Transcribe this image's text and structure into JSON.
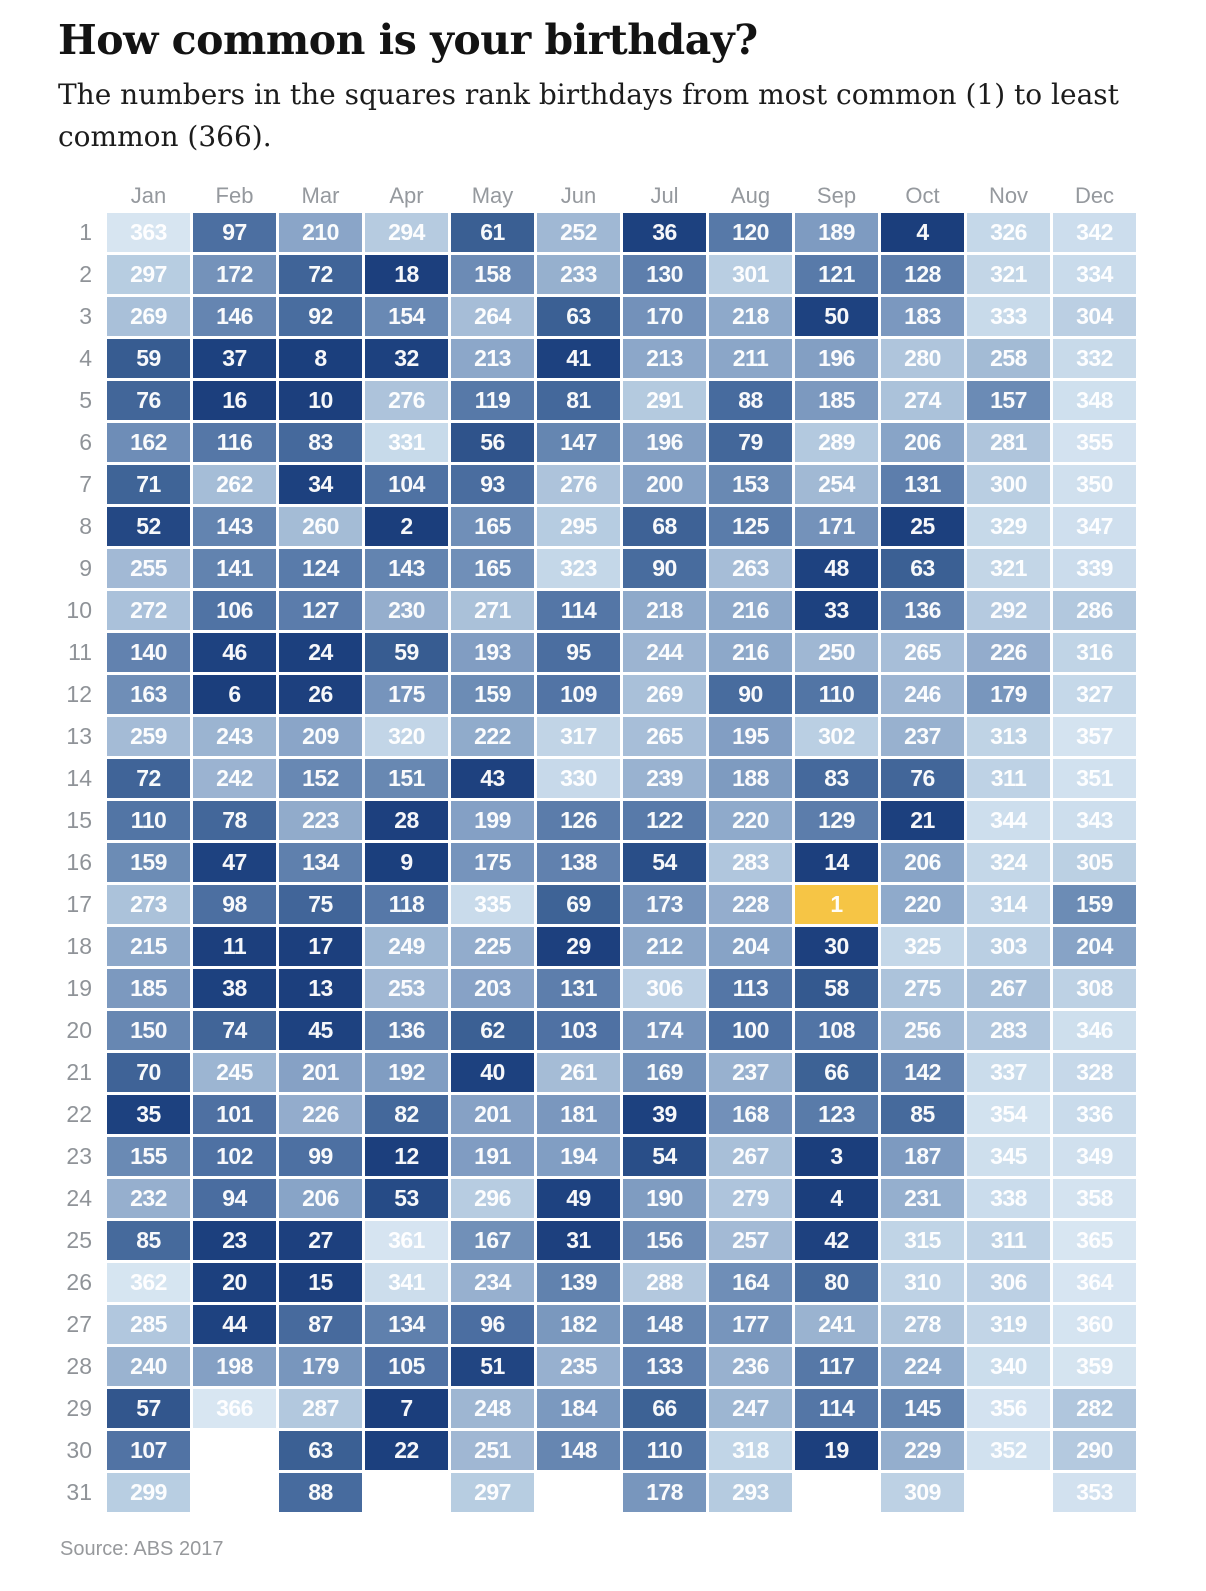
{
  "title": "How common is your birthday?",
  "subtitle": "The numbers in the squares rank birthdays from most common (1) to least common (366).",
  "source": "Source: ABS 2017",
  "chart_data": {
    "type": "heatmap",
    "title": "How common is your birthday?",
    "value_domain": [
      1,
      366
    ],
    "value_meaning": "rank of birthday commonality, 1 = most common, 366 = least common",
    "x_categories": [
      "Jan",
      "Feb",
      "Mar",
      "Apr",
      "May",
      "Jun",
      "Jul",
      "Aug",
      "Sep",
      "Oct",
      "Nov",
      "Dec"
    ],
    "day_labels": [
      1,
      2,
      3,
      4,
      5,
      6,
      7,
      8,
      9,
      10,
      11,
      12,
      13,
      14,
      15,
      16,
      17,
      18,
      19,
      20,
      21,
      22,
      23,
      24,
      25,
      26,
      27,
      28,
      29,
      30,
      31
    ],
    "months": [
      {
        "name": "Jan",
        "ranks": [
          363,
          297,
          269,
          59,
          76,
          162,
          71,
          52,
          255,
          272,
          140,
          163,
          259,
          72,
          110,
          159,
          273,
          215,
          185,
          150,
          70,
          35,
          155,
          232,
          85,
          362,
          285,
          240,
          57,
          107,
          299
        ]
      },
      {
        "name": "Feb",
        "ranks": [
          97,
          172,
          146,
          37,
          16,
          116,
          262,
          143,
          141,
          106,
          46,
          6,
          243,
          242,
          78,
          47,
          98,
          11,
          38,
          74,
          245,
          101,
          102,
          94,
          23,
          20,
          44,
          198,
          366
        ]
      },
      {
        "name": "Mar",
        "ranks": [
          210,
          72,
          92,
          8,
          10,
          83,
          34,
          260,
          124,
          127,
          24,
          26,
          209,
          152,
          223,
          134,
          75,
          17,
          13,
          45,
          201,
          226,
          99,
          206,
          27,
          15,
          87,
          179,
          287,
          63,
          88
        ]
      },
      {
        "name": "Apr",
        "ranks": [
          294,
          18,
          154,
          32,
          276,
          331,
          104,
          2,
          143,
          230,
          59,
          175,
          320,
          151,
          28,
          9,
          118,
          249,
          253,
          136,
          192,
          82,
          12,
          53,
          361,
          341,
          134,
          105,
          7,
          22
        ]
      },
      {
        "name": "May",
        "ranks": [
          61,
          158,
          264,
          213,
          119,
          56,
          93,
          165,
          165,
          271,
          193,
          159,
          222,
          43,
          199,
          175,
          335,
          225,
          203,
          62,
          40,
          201,
          191,
          296,
          167,
          234,
          96,
          51,
          248,
          251,
          297
        ]
      },
      {
        "name": "Jun",
        "ranks": [
          252,
          233,
          63,
          41,
          81,
          147,
          276,
          295,
          323,
          114,
          95,
          109,
          317,
          330,
          126,
          138,
          69,
          29,
          131,
          103,
          261,
          181,
          194,
          49,
          31,
          139,
          182,
          235,
          184,
          148
        ]
      },
      {
        "name": "Jul",
        "ranks": [
          36,
          130,
          170,
          213,
          291,
          196,
          200,
          68,
          90,
          218,
          244,
          269,
          265,
          239,
          122,
          54,
          173,
          212,
          306,
          174,
          169,
          39,
          54,
          190,
          156,
          288,
          148,
          133,
          66,
          110,
          178
        ]
      },
      {
        "name": "Aug",
        "ranks": [
          120,
          301,
          218,
          211,
          88,
          79,
          153,
          125,
          263,
          216,
          216,
          90,
          195,
          188,
          220,
          283,
          228,
          204,
          113,
          100,
          237,
          168,
          267,
          279,
          257,
          164,
          177,
          236,
          247,
          318,
          293
        ]
      },
      {
        "name": "Sep",
        "ranks": [
          189,
          121,
          50,
          196,
          185,
          289,
          254,
          171,
          48,
          33,
          250,
          110,
          302,
          83,
          129,
          14,
          1,
          30,
          58,
          108,
          66,
          123,
          3,
          4,
          42,
          80,
          241,
          117,
          114,
          19
        ]
      },
      {
        "name": "Oct",
        "ranks": [
          4,
          128,
          183,
          280,
          274,
          206,
          131,
          25,
          63,
          136,
          265,
          246,
          237,
          76,
          21,
          206,
          220,
          325,
          275,
          256,
          142,
          85,
          187,
          231,
          315,
          310,
          278,
          224,
          145,
          229,
          309
        ]
      },
      {
        "name": "Nov",
        "ranks": [
          326,
          321,
          333,
          258,
          157,
          281,
          300,
          329,
          321,
          292,
          226,
          179,
          313,
          311,
          344,
          324,
          314,
          303,
          267,
          283,
          337,
          354,
          345,
          338,
          311,
          306,
          319,
          340,
          356,
          352
        ]
      },
      {
        "name": "Dec",
        "ranks": [
          342,
          334,
          304,
          332,
          348,
          355,
          350,
          347,
          339,
          286,
          316,
          327,
          357,
          351,
          343,
          305,
          159,
          204,
          308,
          346,
          328,
          336,
          349,
          358,
          365,
          364,
          360,
          359,
          282,
          290,
          353
        ]
      }
    ],
    "highlight": {
      "month": "Sep",
      "day": 17,
      "rank": 1,
      "color": "#f6c545"
    },
    "color_scale": {
      "description": "dark navy = most common, pale blue = least common",
      "stops": [
        [
          2,
          "#1b3e7c"
        ],
        [
          50,
          "#1e4280"
        ],
        [
          60,
          "#3a5f93"
        ],
        [
          100,
          "#4d70a2"
        ],
        [
          150,
          "#6787b2"
        ],
        [
          200,
          "#85a1c5"
        ],
        [
          250,
          "#9fb7d3"
        ],
        [
          300,
          "#b9cee2"
        ],
        [
          335,
          "#c9dbeb"
        ],
        [
          366,
          "#d8e6f2"
        ]
      ]
    },
    "grid": false,
    "legend": "none"
  }
}
